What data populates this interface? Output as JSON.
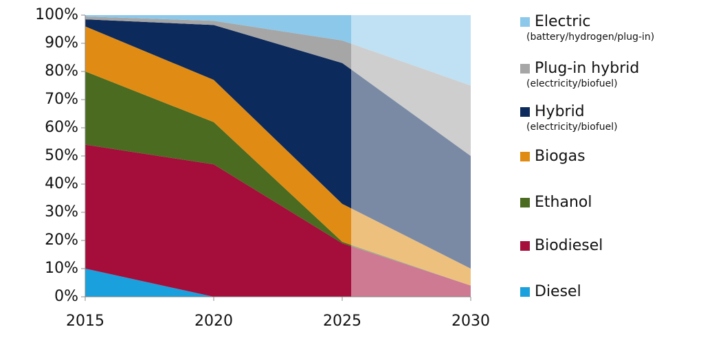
{
  "chart_data": {
    "type": "stacked-area",
    "x": [
      2015,
      2020,
      2025,
      2030
    ],
    "xlim": [
      2015,
      2030
    ],
    "xticks": [
      2015,
      2020,
      2025,
      2030
    ],
    "ylim": [
      0,
      100
    ],
    "yticks": [
      {
        "value": 0,
        "label": "0%"
      },
      {
        "value": 10,
        "label": "10%"
      },
      {
        "value": 20,
        "label": "20%"
      },
      {
        "value": 30,
        "label": "30%"
      },
      {
        "value": 40,
        "label": "40%"
      },
      {
        "value": 50,
        "label": "50%"
      },
      {
        "value": 60,
        "label": "60%"
      },
      {
        "value": 70,
        "label": "70%"
      },
      {
        "value": 80,
        "label": "80%"
      },
      {
        "value": 90,
        "label": "90%"
      },
      {
        "value": 100,
        "label": "100%"
      }
    ],
    "series": [
      {
        "name": "Diesel",
        "color": "#1aa0dc",
        "values": [
          10,
          0,
          0,
          0
        ]
      },
      {
        "name": "Biodiesel",
        "color": "#a50d3a",
        "values": [
          44,
          47,
          19,
          4
        ]
      },
      {
        "name": "Ethanol",
        "color": "#4a6b20",
        "values": [
          26,
          15,
          0.5,
          0
        ]
      },
      {
        "name": "Biogas",
        "color": "#e08c14",
        "values": [
          16,
          15,
          13.5,
          6
        ]
      },
      {
        "name": "Hybrid",
        "subtitle": "(electricity/biofuel)",
        "color": "#0d2a5c",
        "values": [
          2.5,
          19.5,
          50,
          40
        ]
      },
      {
        "name": "Plug-in hybrid",
        "subtitle": "(electricity/biofuel)",
        "color": "#a6a6a6",
        "values": [
          1,
          1.5,
          8,
          25
        ]
      },
      {
        "name": "Electric",
        "subtitle": "(battery/hydrogen/plug-in)",
        "color": "#8cc8ea",
        "values": [
          0.5,
          2,
          9,
          25
        ]
      }
    ]
  }
}
